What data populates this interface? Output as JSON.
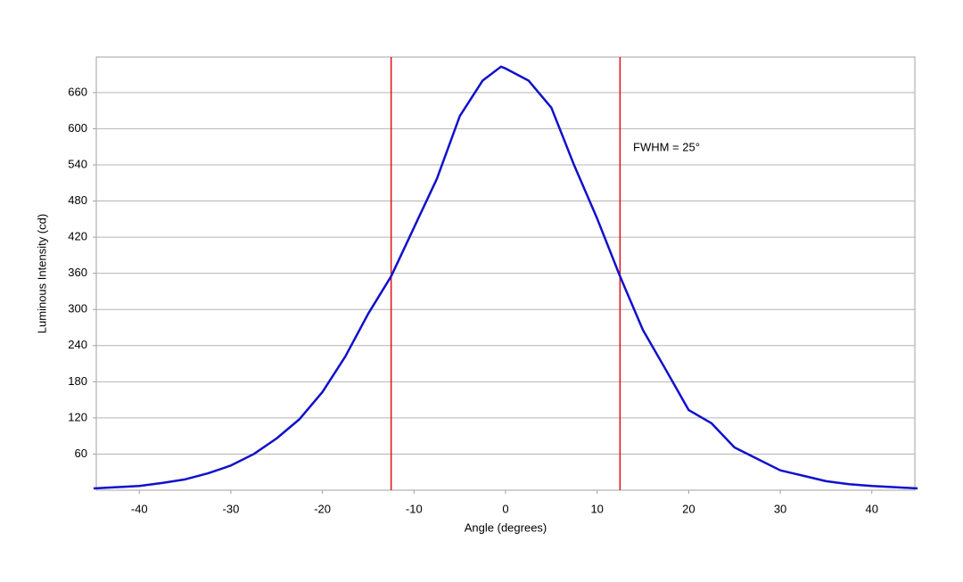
{
  "chart_data": {
    "type": "line",
    "x_label": "Angle (degrees)",
    "y_label": "Luminous Intensity (cd)",
    "annotation": "FWHM = 25°",
    "x": [
      -45,
      -42.5,
      -40,
      -37.5,
      -35,
      -32.5,
      -30,
      -27.5,
      -25,
      -22.5,
      -20,
      -17.5,
      -15,
      -12.5,
      -10,
      -7.5,
      -5,
      -2.5,
      -0.5,
      0,
      2.5,
      5,
      7.5,
      10,
      12.5,
      15,
      17.5,
      20,
      22.5,
      25,
      27.5,
      30,
      32.5,
      35,
      37.5,
      40,
      42.5,
      45
    ],
    "series": [
      {
        "name": "Luminous Intensity",
        "color": "#1010cc",
        "values": [
          3,
          5,
          7,
          12,
          18,
          28,
          41,
          60,
          86,
          118,
          163,
          222,
          293,
          355,
          436,
          517,
          621,
          680,
          703,
          700,
          680,
          635,
          539,
          451,
          355,
          266,
          200,
          133,
          111,
          71,
          52,
          33,
          24,
          15,
          10,
          7,
          5,
          3
        ]
      }
    ],
    "vlines": [
      -12.5,
      12.5
    ],
    "vline_color": "#dd1111",
    "xlim": [
      -44.7,
      44.7
    ],
    "ylim": [
      0,
      719
    ],
    "xticks": [
      -40,
      -30,
      -20,
      -10,
      0,
      10,
      20,
      30,
      40
    ],
    "yticks": [
      60,
      120,
      180,
      240,
      300,
      360,
      420,
      480,
      540,
      600,
      660
    ],
    "grid": true
  }
}
